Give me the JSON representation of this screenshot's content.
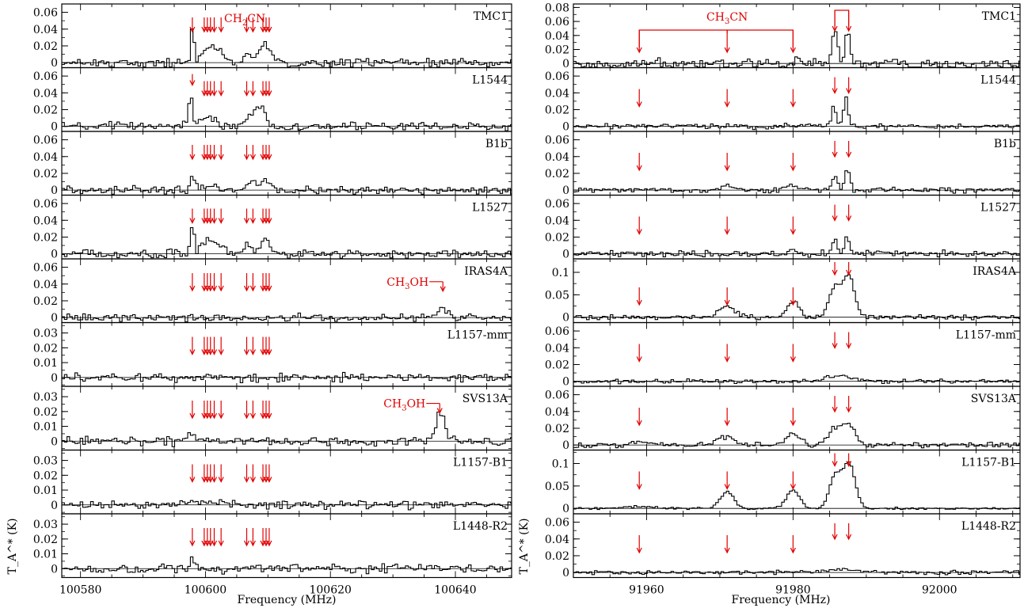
{
  "chart_data": [
    {
      "type": "line",
      "style": "histogram-step",
      "xlabel": "Frequency (MHz)",
      "ylabel": "T_A^* (K)",
      "xlim": [
        100577,
        100649
      ],
      "x_ticks": [
        100580,
        100600,
        100620,
        100640
      ],
      "x_tick_labels": [
        "100580",
        "100600",
        "100620",
        "100640"
      ],
      "line_color": "#000000",
      "marker_color": "#e00000",
      "molecule_label": "CH2CN",
      "molecule_label_parts": {
        "base": "CH",
        "sub": "2",
        "rest": "CN"
      },
      "line_markers": [
        100597.9,
        100599.8,
        100600.3,
        100600.8,
        100601.4,
        100602.5,
        100606.6,
        100607.6,
        100609.2,
        100609.7,
        100610.2
      ],
      "panels": [
        {
          "source": "TMC1",
          "ylim": [
            -0.006,
            0.07
          ],
          "y_ticks": [
            0,
            0.02,
            0.04,
            0.06
          ],
          "y_tick_labels": [
            "0",
            "0.02",
            "0.04",
            "0.06"
          ],
          "noise": 0.004,
          "features": [
            {
              "x": 100597.9,
              "height": 0.045,
              "width": 0.25
            },
            {
              "x": 100600.5,
              "height": 0.018,
              "width": 1.0
            },
            {
              "x": 100602.2,
              "height": 0.009,
              "width": 0.8
            },
            {
              "x": 100606.8,
              "height": 0.008,
              "width": 0.6
            },
            {
              "x": 100609.5,
              "height": 0.02,
              "width": 1.0
            }
          ]
        },
        {
          "source": "L1544",
          "ylim": [
            -0.006,
            0.07
          ],
          "y_ticks": [
            0,
            0.02,
            0.04,
            0.06
          ],
          "y_tick_labels": [
            "0",
            "0.02",
            "0.04",
            "0.06"
          ],
          "noise": 0.004,
          "features": [
            {
              "x": 100597.6,
              "height": 0.05,
              "width": 0.25
            },
            {
              "x": 100600.5,
              "height": 0.012,
              "width": 1.2
            },
            {
              "x": 100607.2,
              "height": 0.012,
              "width": 0.8
            },
            {
              "x": 100608.8,
              "height": 0.022,
              "width": 0.8
            }
          ]
        },
        {
          "source": "B1b",
          "ylim": [
            -0.006,
            0.07
          ],
          "y_ticks": [
            0,
            0.02,
            0.04,
            0.06
          ],
          "y_tick_labels": [
            "0",
            "0.02",
            "0.04",
            "0.06"
          ],
          "noise": 0.004,
          "features": [
            {
              "x": 100598.0,
              "height": 0.017,
              "width": 0.4
            },
            {
              "x": 100601.0,
              "height": 0.007,
              "width": 1.0
            },
            {
              "x": 100607.0,
              "height": 0.008,
              "width": 0.8
            },
            {
              "x": 100609.5,
              "height": 0.01,
              "width": 0.8
            }
          ]
        },
        {
          "source": "L1527",
          "ylim": [
            -0.006,
            0.07
          ],
          "y_ticks": [
            0,
            0.02,
            0.04,
            0.06
          ],
          "y_tick_labels": [
            "0",
            "0.02",
            "0.04",
            "0.06"
          ],
          "noise": 0.004,
          "features": [
            {
              "x": 100597.9,
              "height": 0.035,
              "width": 0.3
            },
            {
              "x": 100600.5,
              "height": 0.016,
              "width": 1.0
            },
            {
              "x": 100602.5,
              "height": 0.009,
              "width": 0.8
            },
            {
              "x": 100606.8,
              "height": 0.01,
              "width": 0.6
            },
            {
              "x": 100609.5,
              "height": 0.018,
              "width": 0.8
            }
          ]
        },
        {
          "source": "IRAS4A",
          "ylim": [
            -0.006,
            0.07
          ],
          "y_ticks": [
            0,
            0.02,
            0.04,
            0.06
          ],
          "y_tick_labels": [
            "0",
            "0.02",
            "0.04",
            "0.06"
          ],
          "noise": 0.0035,
          "extra_label": {
            "text": "CH3OH",
            "parts": {
              "base": "CH",
              "sub": "3",
              "rest": "OH"
            },
            "x": 100638.0,
            "y_frac": 0.42
          },
          "features": [
            {
              "x": 100638.0,
              "height": 0.013,
              "width": 0.8
            }
          ]
        },
        {
          "source": "L1157-mm",
          "ylim": [
            -0.006,
            0.037
          ],
          "y_ticks": [
            0,
            0.01,
            0.02,
            0.03
          ],
          "y_tick_labels": [
            "0",
            "0.01",
            "0.02",
            "0.03"
          ],
          "noise": 0.0025,
          "features": []
        },
        {
          "source": "SVS13A",
          "ylim": [
            -0.006,
            0.037
          ],
          "y_ticks": [
            0,
            0.01,
            0.02,
            0.03
          ],
          "y_tick_labels": [
            "0",
            "0.01",
            "0.02",
            "0.03"
          ],
          "noise": 0.0025,
          "extra_label": {
            "text": "CH3OH",
            "parts": {
              "base": "CH",
              "sub": "3",
              "rest": "OH"
            },
            "x": 100637.5,
            "y_frac": 0.33
          },
          "features": [
            {
              "x": 100597.6,
              "height": 0.006,
              "width": 0.6
            },
            {
              "x": 100637.6,
              "height": 0.018,
              "width": 0.8
            }
          ]
        },
        {
          "source": "L1157-B1",
          "ylim": [
            -0.006,
            0.037
          ],
          "y_ticks": [
            0,
            0.01,
            0.02,
            0.03
          ],
          "y_tick_labels": [
            "0",
            "0.01",
            "0.02",
            "0.03"
          ],
          "noise": 0.0022,
          "features": [
            {
              "x": 100601.0,
              "height": 0.002,
              "width": 3.0
            }
          ]
        },
        {
          "source": "L1448-R2",
          "ylim": [
            -0.006,
            0.037
          ],
          "y_ticks": [
            0,
            0.01,
            0.02,
            0.03
          ],
          "y_tick_labels": [
            "0",
            "0.01",
            "0.02",
            "0.03"
          ],
          "noise": 0.0025,
          "features": [
            {
              "x": 100597.8,
              "height": 0.008,
              "width": 0.3
            }
          ]
        }
      ]
    },
    {
      "type": "line",
      "style": "histogram-step",
      "xlabel": "Frequency (MHz)",
      "ylabel": "T_A^* (K)",
      "xlim": [
        91950,
        92011
      ],
      "x_ticks": [
        91960,
        91980,
        92000
      ],
      "x_tick_labels": [
        "91960",
        "91980",
        "92000"
      ],
      "line_color": "#000000",
      "marker_color": "#e00000",
      "molecule_label": "CH3CN",
      "molecule_label_parts": {
        "base": "CH",
        "sub": "3",
        "rest": "CN"
      },
      "line_markers": [
        91959.0,
        91971.0,
        91980.0,
        91985.7,
        91987.6
      ],
      "bracket_groups": [
        [
          91959.0,
          91971.0,
          91980.0
        ],
        [
          91985.7,
          91987.6
        ]
      ],
      "panels": [
        {
          "source": "TMC1",
          "ylim": [
            -0.006,
            0.085
          ],
          "y_ticks": [
            0,
            0.02,
            0.04,
            0.06,
            0.08
          ],
          "y_tick_labels": [
            "0",
            "0.02",
            "0.04",
            "0.06",
            "0.08"
          ],
          "noise": 0.006,
          "features": [
            {
              "x": 91985.7,
              "height": 0.045,
              "width": 0.35
            },
            {
              "x": 91987.4,
              "height": 0.048,
              "width": 0.3
            }
          ]
        },
        {
          "source": "L1544",
          "ylim": [
            -0.006,
            0.07
          ],
          "y_ticks": [
            0,
            0.02,
            0.04,
            0.06
          ],
          "y_tick_labels": [
            "0",
            "0.02",
            "0.04",
            "0.06"
          ],
          "noise": 0.0025,
          "features": [
            {
              "x": 91985.6,
              "height": 0.025,
              "width": 0.3
            },
            {
              "x": 91987.2,
              "height": 0.036,
              "width": 0.3
            }
          ]
        },
        {
          "source": "B1b",
          "ylim": [
            -0.006,
            0.07
          ],
          "y_ticks": [
            0,
            0.02,
            0.04,
            0.06
          ],
          "y_tick_labels": [
            "0",
            "0.02",
            "0.04",
            "0.06"
          ],
          "noise": 0.0025,
          "features": [
            {
              "x": 91971.0,
              "height": 0.005,
              "width": 0.8
            },
            {
              "x": 91980.0,
              "height": 0.005,
              "width": 0.8
            },
            {
              "x": 91985.7,
              "height": 0.017,
              "width": 0.4
            },
            {
              "x": 91987.4,
              "height": 0.024,
              "width": 0.35
            }
          ]
        },
        {
          "source": "L1527",
          "ylim": [
            -0.006,
            0.07
          ],
          "y_ticks": [
            0,
            0.02,
            0.04,
            0.06
          ],
          "y_tick_labels": [
            "0",
            "0.02",
            "0.04",
            "0.06"
          ],
          "noise": 0.003,
          "features": [
            {
              "x": 91980.0,
              "height": 0.008,
              "width": 0.4
            },
            {
              "x": 91985.7,
              "height": 0.02,
              "width": 0.3
            },
            {
              "x": 91987.4,
              "height": 0.02,
              "width": 0.3
            }
          ]
        },
        {
          "source": "IRAS4A",
          "ylim": [
            -0.012,
            0.13
          ],
          "y_ticks": [
            0,
            0.05,
            0.1
          ],
          "y_tick_labels": [
            "0",
            "0.05",
            "0.1"
          ],
          "noise": 0.004,
          "features": [
            {
              "x": 91971.0,
              "height": 0.025,
              "width": 1.0
            },
            {
              "x": 91980.0,
              "height": 0.035,
              "width": 0.8
            },
            {
              "x": 91985.7,
              "height": 0.065,
              "width": 0.8
            },
            {
              "x": 91987.6,
              "height": 0.09,
              "width": 0.8
            }
          ]
        },
        {
          "source": "L1157-mm",
          "ylim": [
            -0.006,
            0.07
          ],
          "y_ticks": [
            0,
            0.02,
            0.04,
            0.06
          ],
          "y_tick_labels": [
            "0",
            "0.02",
            "0.04",
            "0.06"
          ],
          "noise": 0.002,
          "features": [
            {
              "x": 91986.5,
              "height": 0.006,
              "width": 2.0
            }
          ]
        },
        {
          "source": "SVS13A",
          "ylim": [
            -0.006,
            0.07
          ],
          "y_ticks": [
            0,
            0.02,
            0.04,
            0.06
          ],
          "y_tick_labels": [
            "0",
            "0.02",
            "0.04",
            "0.06"
          ],
          "noise": 0.0025,
          "features": [
            {
              "x": 91959.5,
              "height": 0.004,
              "width": 1.2
            },
            {
              "x": 91970.8,
              "height": 0.01,
              "width": 1.0
            },
            {
              "x": 91980.0,
              "height": 0.014,
              "width": 0.9
            },
            {
              "x": 91985.7,
              "height": 0.02,
              "width": 0.9
            },
            {
              "x": 91987.6,
              "height": 0.024,
              "width": 0.8
            }
          ]
        },
        {
          "source": "L1157-B1",
          "ylim": [
            -0.012,
            0.13
          ],
          "y_ticks": [
            0,
            0.05,
            0.1
          ],
          "y_tick_labels": [
            "0",
            "0.05",
            "0.1"
          ],
          "noise": 0.002,
          "features": [
            {
              "x": 91959.0,
              "height": 0.005,
              "width": 1.5
            },
            {
              "x": 91971.0,
              "height": 0.038,
              "width": 0.9
            },
            {
              "x": 91980.0,
              "height": 0.04,
              "width": 0.9
            },
            {
              "x": 91985.8,
              "height": 0.075,
              "width": 0.8
            },
            {
              "x": 91987.7,
              "height": 0.1,
              "width": 0.8
            }
          ]
        },
        {
          "source": "L1448-R2",
          "ylim": [
            -0.006,
            0.07
          ],
          "y_ticks": [
            0,
            0.02,
            0.04,
            0.06
          ],
          "y_tick_labels": [
            "0",
            "0.02",
            "0.04",
            "0.06"
          ],
          "noise": 0.002,
          "features": [
            {
              "x": 91986.5,
              "height": 0.004,
              "width": 2.0
            }
          ]
        }
      ]
    }
  ]
}
